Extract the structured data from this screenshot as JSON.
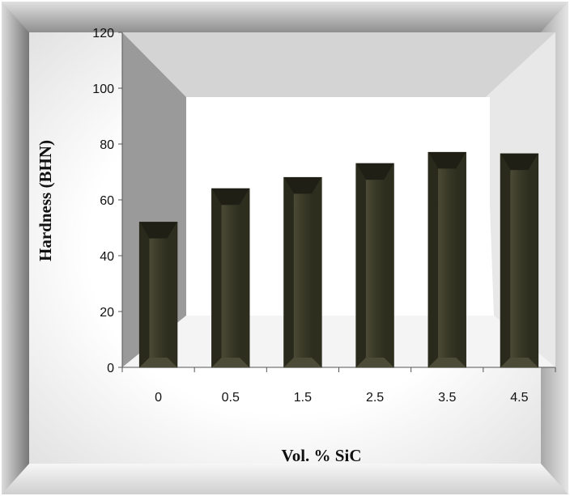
{
  "chart_data": {
    "type": "bar",
    "title": "",
    "xlabel": "Vol. % SiC",
    "ylabel": "Hardness (BHN)",
    "categories": [
      "0",
      "0.5",
      "1.5",
      "2.5",
      "3.5",
      "4.5"
    ],
    "values": [
      52,
      64,
      68,
      73,
      77,
      76.5
    ],
    "ylim": [
      0,
      120
    ],
    "yticks": [
      "0",
      "20",
      "40",
      "60",
      "80",
      "100",
      "120"
    ],
    "grid": false,
    "legend": "none",
    "bar_color": "#3a3a2a"
  }
}
